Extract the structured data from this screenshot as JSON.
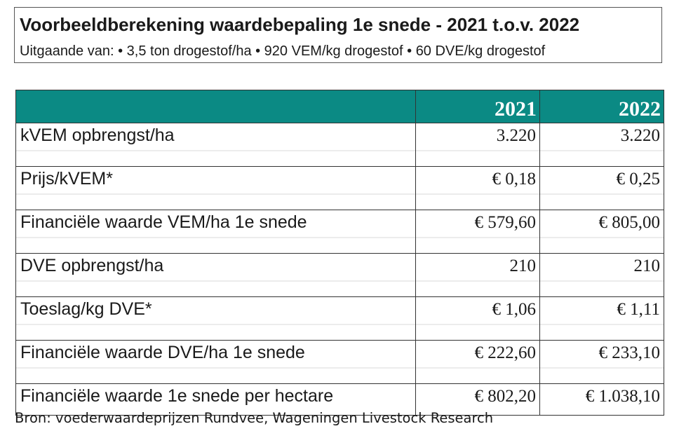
{
  "title": "Voorbeeldberekening waardebepaling 1e snede - 2021 t.o.v. 2022",
  "subtitle": "Uitgaande van: • 3,5 ton drogestof/ha • 920 VEM/kg drogestof • 60 DVE/kg drogestof",
  "table": {
    "headers": [
      "",
      "2021",
      "2022"
    ],
    "rows": [
      {
        "label": "kVEM opbrengst/ha",
        "v2021": "3.220",
        "v2022": "3.220"
      },
      {
        "label": "Prijs/kVEM*",
        "v2021": "€ 0,18",
        "v2022": "€ 0,25"
      },
      {
        "label": "Financiële waarde VEM/ha 1e snede",
        "v2021": "€ 579,60",
        "v2022": "€ 805,00"
      },
      {
        "label": "DVE opbrengst/ha",
        "v2021": "210",
        "v2022": "210"
      },
      {
        "label": "Toeslag/kg DVE*",
        "v2021": "€ 1,06",
        "v2022": "€ 1,11"
      },
      {
        "label": "Financiële waarde DVE/ha 1e snede",
        "v2021": "€ 222,60",
        "v2022": "€ 233,10"
      },
      {
        "label": "Financiële waarde 1e snede per hectare",
        "v2021": "€ 802,20",
        "v2022": "€ 1.038,10"
      }
    ]
  },
  "source": "Bron: voederwaardeprijzen Rundvee, Wageningen Livestock Research",
  "colors": {
    "header_bg": "#0b8a84",
    "header_text": "#ffffff"
  }
}
